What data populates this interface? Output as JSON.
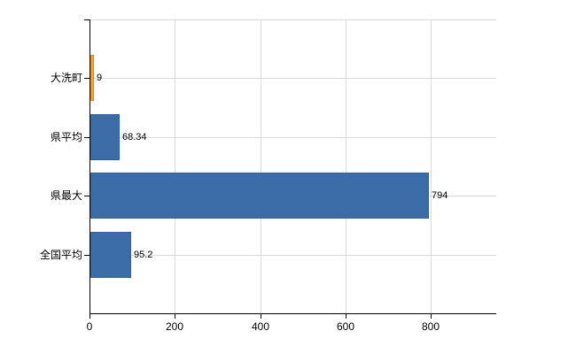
{
  "chart_data": {
    "type": "bar",
    "orientation": "horizontal",
    "title": "",
    "xlabel": "",
    "ylabel": "",
    "categories": [
      "大洗町",
      "県平均",
      "県最大",
      "全国平均"
    ],
    "values": [
      9,
      68.34,
      794,
      95.2
    ],
    "value_labels": [
      "9",
      "68.34",
      "794",
      "95.2"
    ],
    "bar_colors": [
      "#F79F33",
      "#3B6CA5",
      "#3B6CA5",
      "#3B6CA5"
    ],
    "bar_border_colors": [
      "#DC861B",
      "#32609B",
      "#32609B",
      "#32609B"
    ],
    "x_ticks": [
      0,
      200,
      400,
      600,
      800
    ],
    "x_tick_labels": [
      "0",
      "200",
      "400",
      "600",
      "800"
    ],
    "xlim": [
      0,
      953
    ],
    "grid": true,
    "legend": false
  },
  "colors": {
    "background": "#FFFFFF",
    "grid": "#D9D9D9",
    "axis": "#000000",
    "text": "#000000",
    "accent_orange": "#F79F33",
    "accent_blue": "#3B6CA5"
  }
}
